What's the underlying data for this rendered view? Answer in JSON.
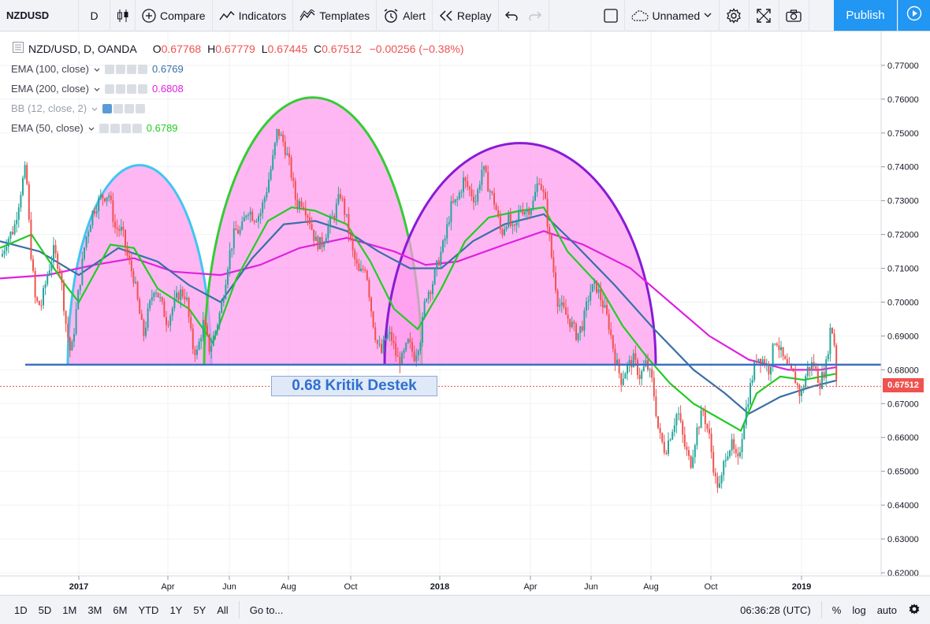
{
  "toolbar": {
    "symbol": "NZDUSD",
    "interval": "D",
    "compare": "Compare",
    "indicators": "Indicators",
    "templates": "Templates",
    "alert": "Alert",
    "replay": "Replay",
    "layout_name": "Unnamed",
    "publish": "Publish"
  },
  "legend": {
    "title": "NZD/USD, D, OANDA",
    "o_label": "O",
    "o_val": "0.67768",
    "h_label": "H",
    "h_val": "0.67779",
    "l_label": "L",
    "l_val": "0.67445",
    "c_label": "C",
    "c_val": "0.67512",
    "change": "−0.00256 (−0.38%)",
    "indicators": [
      {
        "name": "EMA (100, close)",
        "value": "0.6769",
        "color": "#3a6fa8"
      },
      {
        "name": "EMA (200, close)",
        "value": "0.6808",
        "color": "#e020e0"
      },
      {
        "name": "BB (12, close, 2)",
        "value": "",
        "color": "#9aa0aa"
      },
      {
        "name": "EMA (50, close)",
        "value": "0.6789",
        "color": "#22cc22"
      }
    ]
  },
  "annotation": {
    "text": "0.68 Kritik Destek"
  },
  "price_tag": "0.67512",
  "colors": {
    "up": "#26a69a",
    "down": "#ef5350",
    "ema50": "#22cc22",
    "ema100": "#3a6fa8",
    "ema200": "#e020e0",
    "support": "#3a6fc4",
    "arc_fill": "#ff99ee",
    "arc1": "#3fc6f0",
    "arc2": "#33cc33",
    "arc3": "#8a1ad6"
  },
  "chart_data": {
    "type": "candlestick",
    "y_axis_ticks": [
      "0.77000",
      "0.76000",
      "0.75000",
      "0.74000",
      "0.73000",
      "0.72000",
      "0.71000",
      "0.70000",
      "0.69000",
      "0.68000",
      "0.67000",
      "0.66000",
      "0.65000",
      "0.64000",
      "0.63000",
      "0.62000"
    ],
    "ylim": [
      0.62,
      0.778
    ],
    "x_axis_ticks": [
      "2017",
      "Apr",
      "Jun",
      "Aug",
      "Oct",
      "2018",
      "Apr",
      "Jun",
      "Aug",
      "Oct",
      "2019"
    ],
    "support_level": 0.6815,
    "last_close": 0.67512,
    "price_path": [
      [
        0,
        0.712
      ],
      [
        8,
        0.718
      ],
      [
        18,
        0.722
      ],
      [
        28,
        0.735
      ],
      [
        33,
        0.74
      ],
      [
        38,
        0.718
      ],
      [
        45,
        0.7
      ],
      [
        52,
        0.699
      ],
      [
        60,
        0.708
      ],
      [
        68,
        0.715
      ],
      [
        76,
        0.71
      ],
      [
        84,
        0.693
      ],
      [
        90,
        0.684
      ],
      [
        98,
        0.7
      ],
      [
        108,
        0.718
      ],
      [
        118,
        0.727
      ],
      [
        128,
        0.731
      ],
      [
        138,
        0.732
      ],
      [
        146,
        0.722
      ],
      [
        155,
        0.721
      ],
      [
        162,
        0.713
      ],
      [
        170,
        0.707
      ],
      [
        176,
        0.698
      ],
      [
        182,
        0.69
      ],
      [
        188,
        0.697
      ],
      [
        196,
        0.705
      ],
      [
        204,
        0.7
      ],
      [
        212,
        0.694
      ],
      [
        220,
        0.699
      ],
      [
        228,
        0.703
      ],
      [
        236,
        0.702
      ],
      [
        244,
        0.687
      ],
      [
        250,
        0.685
      ],
      [
        258,
        0.694
      ],
      [
        266,
        0.686
      ],
      [
        274,
        0.692
      ],
      [
        282,
        0.7
      ],
      [
        290,
        0.713
      ],
      [
        298,
        0.721
      ],
      [
        306,
        0.721
      ],
      [
        314,
        0.728
      ],
      [
        322,
        0.725
      ],
      [
        330,
        0.726
      ],
      [
        338,
        0.733
      ],
      [
        346,
        0.742
      ],
      [
        352,
        0.751
      ],
      [
        360,
        0.747
      ],
      [
        368,
        0.74
      ],
      [
        376,
        0.729
      ],
      [
        384,
        0.73
      ],
      [
        392,
        0.725
      ],
      [
        400,
        0.718
      ],
      [
        408,
        0.717
      ],
      [
        416,
        0.722
      ],
      [
        424,
        0.726
      ],
      [
        432,
        0.732
      ],
      [
        440,
        0.724
      ],
      [
        448,
        0.714
      ],
      [
        456,
        0.708
      ],
      [
        464,
        0.711
      ],
      [
        472,
        0.696
      ],
      [
        478,
        0.688
      ],
      [
        484,
        0.685
      ],
      [
        490,
        0.69
      ],
      [
        496,
        0.69
      ],
      [
        504,
        0.683
      ],
      [
        510,
        0.683
      ],
      [
        518,
        0.688
      ],
      [
        526,
        0.684
      ],
      [
        534,
        0.69
      ],
      [
        540,
        0.702
      ],
      [
        548,
        0.705
      ],
      [
        556,
        0.712
      ],
      [
        564,
        0.718
      ],
      [
        572,
        0.728
      ],
      [
        580,
        0.73
      ],
      [
        588,
        0.736
      ],
      [
        596,
        0.733
      ],
      [
        604,
        0.73
      ],
      [
        612,
        0.74
      ],
      [
        620,
        0.734
      ],
      [
        628,
        0.729
      ],
      [
        636,
        0.72
      ],
      [
        644,
        0.725
      ],
      [
        652,
        0.72
      ],
      [
        660,
        0.728
      ],
      [
        668,
        0.727
      ],
      [
        676,
        0.729
      ],
      [
        684,
        0.737
      ],
      [
        692,
        0.729
      ],
      [
        700,
        0.713
      ],
      [
        708,
        0.7
      ],
      [
        716,
        0.697
      ],
      [
        724,
        0.694
      ],
      [
        732,
        0.69
      ],
      [
        740,
        0.694
      ],
      [
        748,
        0.703
      ],
      [
        756,
        0.705
      ],
      [
        764,
        0.7
      ],
      [
        772,
        0.694
      ],
      [
        780,
        0.684
      ],
      [
        788,
        0.677
      ],
      [
        796,
        0.681
      ],
      [
        804,
        0.683
      ],
      [
        812,
        0.678
      ],
      [
        820,
        0.682
      ],
      [
        828,
        0.676
      ],
      [
        836,
        0.661
      ],
      [
        844,
        0.656
      ],
      [
        852,
        0.662
      ],
      [
        860,
        0.668
      ],
      [
        868,
        0.658
      ],
      [
        876,
        0.652
      ],
      [
        884,
        0.662
      ],
      [
        892,
        0.668
      ],
      [
        900,
        0.66
      ],
      [
        908,
        0.647
      ],
      [
        914,
        0.645
      ],
      [
        920,
        0.655
      ],
      [
        928,
        0.658
      ],
      [
        936,
        0.652
      ],
      [
        944,
        0.665
      ],
      [
        952,
        0.675
      ],
      [
        960,
        0.684
      ],
      [
        968,
        0.683
      ],
      [
        976,
        0.68
      ],
      [
        984,
        0.69
      ],
      [
        992,
        0.684
      ],
      [
        1000,
        0.68
      ],
      [
        1008,
        0.678
      ],
      [
        1016,
        0.672
      ],
      [
        1024,
        0.68
      ],
      [
        1032,
        0.682
      ],
      [
        1040,
        0.676
      ],
      [
        1048,
        0.681
      ],
      [
        1054,
        0.693
      ],
      [
        1058,
        0.69
      ],
      [
        1062,
        0.6751
      ]
    ],
    "ema50": [
      [
        0,
        0.716
      ],
      [
        40,
        0.72
      ],
      [
        80,
        0.706
      ],
      [
        100,
        0.7
      ],
      [
        140,
        0.717
      ],
      [
        170,
        0.716
      ],
      [
        200,
        0.704
      ],
      [
        240,
        0.698
      ],
      [
        270,
        0.688
      ],
      [
        300,
        0.707
      ],
      [
        340,
        0.724
      ],
      [
        370,
        0.728
      ],
      [
        400,
        0.727
      ],
      [
        440,
        0.723
      ],
      [
        470,
        0.712
      ],
      [
        500,
        0.698
      ],
      [
        530,
        0.692
      ],
      [
        560,
        0.704
      ],
      [
        590,
        0.718
      ],
      [
        620,
        0.725
      ],
      [
        660,
        0.727
      ],
      [
        690,
        0.728
      ],
      [
        720,
        0.715
      ],
      [
        760,
        0.705
      ],
      [
        790,
        0.693
      ],
      [
        820,
        0.684
      ],
      [
        850,
        0.676
      ],
      [
        880,
        0.67
      ],
      [
        910,
        0.666
      ],
      [
        940,
        0.662
      ],
      [
        960,
        0.673
      ],
      [
        990,
        0.678
      ],
      [
        1020,
        0.677
      ],
      [
        1062,
        0.6789
      ]
    ],
    "ema100": [
      [
        0,
        0.718
      ],
      [
        50,
        0.715
      ],
      [
        100,
        0.708
      ],
      [
        150,
        0.716
      ],
      [
        200,
        0.712
      ],
      [
        240,
        0.705
      ],
      [
        280,
        0.7
      ],
      [
        320,
        0.713
      ],
      [
        360,
        0.723
      ],
      [
        400,
        0.724
      ],
      [
        440,
        0.721
      ],
      [
        480,
        0.715
      ],
      [
        520,
        0.71
      ],
      [
        560,
        0.71
      ],
      [
        600,
        0.718
      ],
      [
        640,
        0.723
      ],
      [
        690,
        0.726
      ],
      [
        730,
        0.717
      ],
      [
        780,
        0.705
      ],
      [
        830,
        0.692
      ],
      [
        880,
        0.68
      ],
      [
        920,
        0.673
      ],
      [
        950,
        0.667
      ],
      [
        990,
        0.672
      ],
      [
        1030,
        0.675
      ],
      [
        1062,
        0.6769
      ]
    ],
    "ema200": [
      [
        0,
        0.707
      ],
      [
        60,
        0.708
      ],
      [
        120,
        0.711
      ],
      [
        170,
        0.713
      ],
      [
        220,
        0.709
      ],
      [
        280,
        0.708
      ],
      [
        330,
        0.711
      ],
      [
        380,
        0.716
      ],
      [
        440,
        0.719
      ],
      [
        500,
        0.715
      ],
      [
        540,
        0.711
      ],
      [
        580,
        0.712
      ],
      [
        640,
        0.717
      ],
      [
        690,
        0.721
      ],
      [
        740,
        0.717
      ],
      [
        800,
        0.71
      ],
      [
        850,
        0.7
      ],
      [
        900,
        0.69
      ],
      [
        950,
        0.683
      ],
      [
        1000,
        0.68
      ],
      [
        1040,
        0.68
      ],
      [
        1062,
        0.6808
      ]
    ]
  }
}
